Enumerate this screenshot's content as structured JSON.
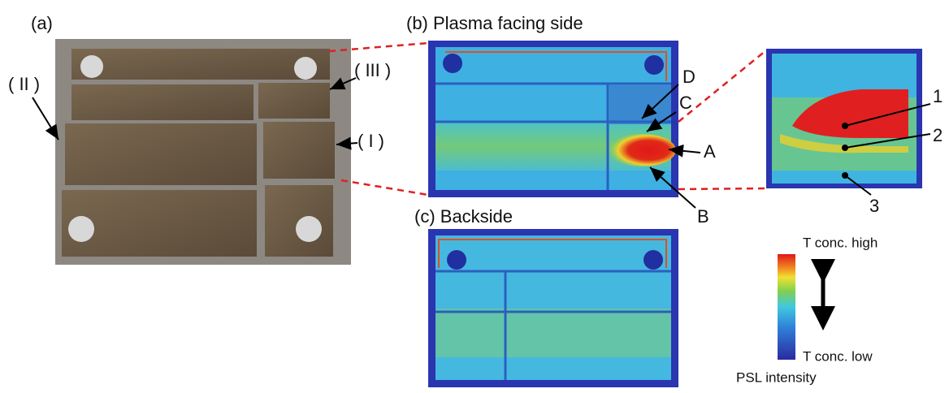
{
  "panel_a": {
    "label": "(a)",
    "callouts": [
      "( II )",
      "( III )",
      "( I )"
    ]
  },
  "panel_b": {
    "label": "(b) Plasma facing side",
    "points": [
      "A",
      "B",
      "C",
      "D"
    ]
  },
  "zoom": {
    "points": [
      "1",
      "2",
      "3"
    ]
  },
  "panel_c": {
    "label": "(c) Backside"
  },
  "colorbar": {
    "high": "T conc. high",
    "low": "T conc. low",
    "title": "PSL intensity"
  }
}
